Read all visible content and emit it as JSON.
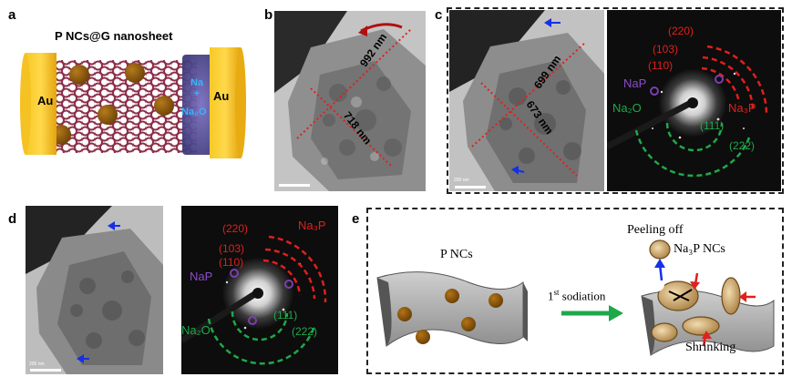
{
  "panels": {
    "a": {
      "letter": "a",
      "title": "P NCs@G nanosheet",
      "left_electrode": "Au",
      "right_electrode": "Au",
      "reaction_na": "Na",
      "reaction_plus": "+",
      "reaction_product": "Na₂O"
    },
    "b": {
      "letter": "b",
      "measure_1": "992 nm",
      "measure_2": "718 nm"
    },
    "c": {
      "letter": "c",
      "measure_1": "699 nm",
      "measure_2": "673 nm",
      "scale_bar": "200 nm",
      "rings_red": [
        "(220)",
        "(103)",
        "(110)"
      ],
      "phase_red": "Na₃P",
      "phase_nap": "NaP",
      "phase_na2o": "Na₂O",
      "rings_green": [
        "(111)",
        "(222)"
      ]
    },
    "d": {
      "letter": "d",
      "scale_bar": "200 nm",
      "rings_red": [
        "(220)",
        "(103)",
        "(110)"
      ],
      "phase_red": "Na₃P",
      "phase_nap": "NaP",
      "phase_na2o": "Na₂O",
      "rings_green": [
        "(111)",
        "(222)"
      ]
    },
    "e": {
      "letter": "e",
      "left_label": "P NCs",
      "step_label": "1",
      "step_sup": "st",
      "step_rest": " sodiation",
      "peeling": "Peeling off",
      "product_label": "Na₃P NCs",
      "shrinking": "Shrinking"
    }
  },
  "colors": {
    "red_marker": "#e0201c",
    "green_marker": "#1fa84a",
    "purple_marker": "#7a3fb0",
    "blue_arrow": "#1530e6",
    "gold": "#f2b417",
    "np_brown": "#8b5a10",
    "lattice": "#8c2f4a"
  }
}
